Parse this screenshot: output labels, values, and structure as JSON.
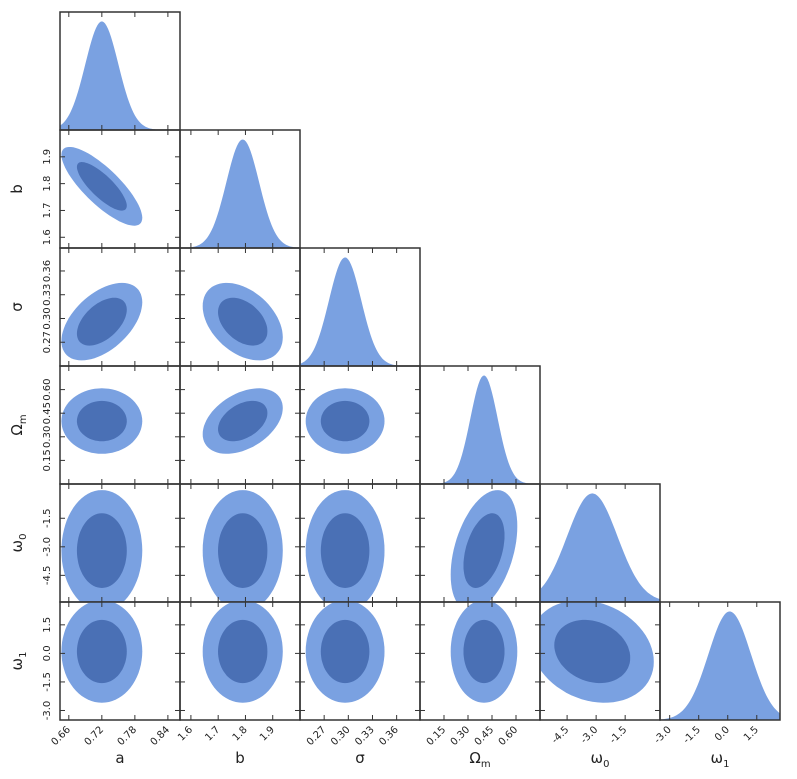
{
  "chart_data": {
    "type": "corner",
    "contour_levels": [
      0.68,
      0.95
    ],
    "colors": {
      "marginal": "#7aa1e1",
      "outer": "#7aa1e1",
      "inner": "#4a70b5"
    },
    "parameters": [
      {
        "label": "a",
        "mean": 0.72,
        "sd": 0.03,
        "lim": [
          0.644,
          0.862
        ],
        "ticks": [
          0.66,
          0.72,
          0.78,
          0.84
        ]
      },
      {
        "label": "b",
        "mean": 1.79,
        "sd": 0.06,
        "lim": [
          1.56,
          2.0
        ],
        "ticks": [
          1.6,
          1.7,
          1.8,
          1.9
        ]
      },
      {
        "label": "σ",
        "mean": 0.296,
        "sd": 0.02,
        "lim": [
          0.24,
          0.389
        ],
        "ticks": [
          0.27,
          {
            "value": 0.3,
            "label": "0.30"
          },
          0.33,
          0.36
        ]
      },
      {
        "label": "Ωm",
        "mean": 0.4,
        "sd": 0.085,
        "lim": [
          0.0,
          0.75
        ],
        "ticks": [
          0.15,
          {
            "value": 0.3,
            "label": "0.30"
          },
          0.45,
          {
            "value": 0.6,
            "label": "0.60"
          }
        ]
      },
      {
        "label": "ω0",
        "mean": -3.2,
        "sd": 1.3,
        "lim": [
          -5.9,
          0.3
        ],
        "ticks": [
          -4.5,
          {
            "value": -3,
            "label": "-3.0"
          },
          -1.5
        ]
      },
      {
        "label": "ω1",
        "mean": 0.1,
        "sd": 1.1,
        "lim": [
          -3.5,
          2.7
        ],
        "ticks": [
          {
            "value": -3,
            "label": "-3.0"
          },
          -1.5,
          {
            "value": 0,
            "label": "0.0"
          },
          1.5
        ]
      }
    ],
    "correlations": [
      [
        1,
        -0.8,
        0.5,
        0.0,
        0.0,
        0.0
      ],
      [
        -0.8,
        1,
        -0.4,
        0.4,
        0.0,
        0.0
      ],
      [
        0.5,
        -0.4,
        1,
        0.0,
        0.0,
        0.0
      ],
      [
        0.0,
        0.4,
        0.0,
        1,
        0.4,
        0.0
      ],
      [
        0.0,
        0.0,
        0.0,
        0.4,
        1,
        -0.2
      ],
      [
        0.0,
        0.0,
        0.0,
        0.0,
        -0.2,
        1
      ]
    ]
  }
}
